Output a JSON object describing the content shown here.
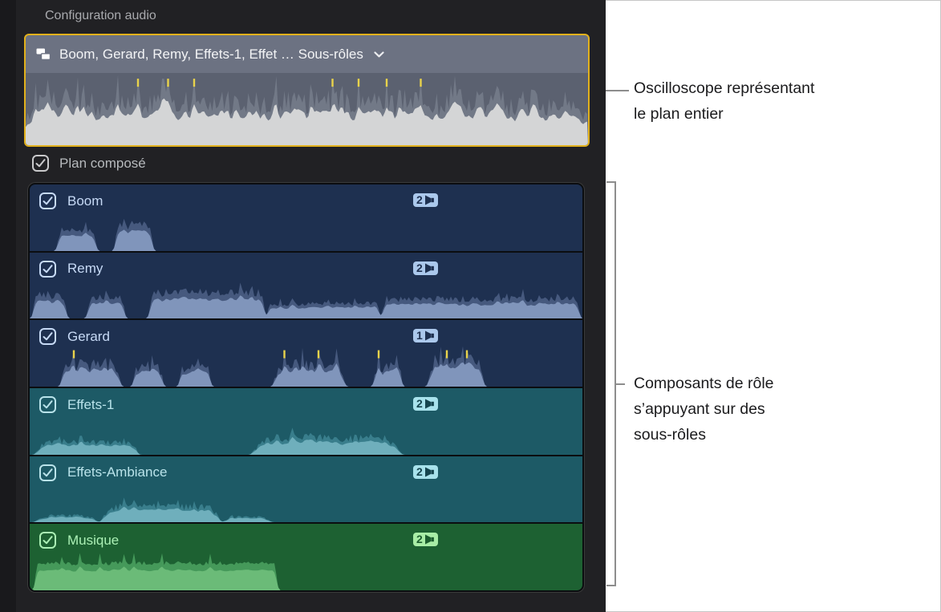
{
  "panel": {
    "header": "Configuration audio",
    "clip": {
      "title": "Boom, Gerard, Remy, Effets-1, Effet … Sous-rôles",
      "border_color": "#e2b11c",
      "bg": "#6c7282",
      "wave_bg": "#5b6170",
      "colors": {
        "fill": "#d4d5d6",
        "peak": "#727987",
        "spike": "#e9d34b"
      },
      "wave": {
        "seed": 7,
        "jitter": 0.5,
        "base": 0.4,
        "spikiness": 0.18,
        "spikeAmp": 0.95,
        "segments": [
          {
            "from": 0,
            "to": 1,
            "amp": 0.8,
            "edge": 0.02
          }
        ],
        "spikes": [
          0.2,
          0.253,
          0.3,
          0.545,
          0.59,
          0.64,
          0.7
        ]
      }
    },
    "compound": {
      "label": "Plan composé",
      "checked": true,
      "color": "#c9c9cb"
    },
    "rows": [
      {
        "label": "Boom",
        "channels": "2",
        "checked": true,
        "colors": {
          "bg": "#1e3050",
          "text": "#c7daf6",
          "fill": "#8095bb",
          "peak": "#46597e",
          "spike": "#e9d34b",
          "badgeBg": "#abc8ec",
          "badgeFg": "#1e3050"
        },
        "wave": {
          "seed": 11,
          "jitter": 0.3,
          "spikiness": 0.06,
          "segments": [
            {
              "from": 0.05,
              "to": 0.125,
              "amp": 0.6
            },
            {
              "from": 0.155,
              "to": 0.225,
              "amp": 0.76
            }
          ]
        }
      },
      {
        "label": "Remy",
        "channels": "2",
        "checked": true,
        "colors": {
          "bg": "#1e3050",
          "text": "#c7daf6",
          "fill": "#8095bb",
          "peak": "#46597e",
          "spike": "#e9d34b",
          "badgeBg": "#abc8ec",
          "badgeFg": "#1e3050"
        },
        "wave": {
          "seed": 23,
          "jitter": 0.28,
          "spikiness": 0.08,
          "segments": [
            {
              "from": 0.004,
              "to": 0.07,
              "amp": 0.66
            },
            {
              "from": 0.105,
              "to": 0.175,
              "amp": 0.58
            },
            {
              "from": 0.215,
              "to": 0.43,
              "amp": 0.74,
              "edge": 0.06
            },
            {
              "from": 0.43,
              "to": 0.635,
              "amp": 0.42,
              "edge": 0.04
            },
            {
              "from": 0.635,
              "to": 1,
              "amp": 0.56,
              "edge": 0.04
            }
          ]
        }
      },
      {
        "label": "Gerard",
        "channels": "1",
        "checked": true,
        "colors": {
          "bg": "#1e3050",
          "text": "#c7daf6",
          "fill": "#8095bb",
          "peak": "#46597e",
          "spike": "#e9d34b",
          "badgeBg": "#abc8ec",
          "badgeFg": "#1e3050"
        },
        "wave": {
          "seed": 37,
          "jitter": 0.5,
          "spikiness": 0.22,
          "spikeAmp": 0.9,
          "segments": [
            {
              "from": 0.055,
              "to": 0.17,
              "amp": 0.72
            },
            {
              "from": 0.185,
              "to": 0.245,
              "amp": 0.6
            },
            {
              "from": 0.27,
              "to": 0.33,
              "amp": 0.56
            },
            {
              "from": 0.44,
              "to": 0.575,
              "amp": 0.74
            },
            {
              "from": 0.62,
              "to": 0.675,
              "amp": 0.62
            },
            {
              "from": 0.72,
              "to": 0.825,
              "amp": 0.8
            }
          ],
          "spikes": [
            0.08,
            0.46,
            0.52,
            0.63,
            0.755,
            0.79
          ]
        }
      },
      {
        "label": "Effets-1",
        "channels": "2",
        "checked": true,
        "colors": {
          "bg": "#1d5a66",
          "text": "#b9e3ea",
          "fill": "#6fafbc",
          "peak": "#397e8c",
          "spike": "#e9d34b",
          "badgeBg": "#a8e2ec",
          "badgeFg": "#15454f"
        },
        "wave": {
          "seed": 41,
          "jitter": 0.4,
          "spikiness": 0.1,
          "segments": [
            {
              "from": 0.01,
              "to": 0.2,
              "amp": 0.4
            },
            {
              "from": 0.4,
              "to": 0.675,
              "amp": 0.52
            }
          ]
        }
      },
      {
        "label": "Effets-Ambiance",
        "channels": "2",
        "checked": true,
        "colors": {
          "bg": "#1d5a66",
          "text": "#b9e3ea",
          "fill": "#6fafbc",
          "peak": "#397e8c",
          "spike": "#e9d34b",
          "badgeBg": "#a8e2ec",
          "badgeFg": "#15454f"
        },
        "wave": {
          "seed": 53,
          "jitter": 0.38,
          "spikiness": 0.1,
          "segments": [
            {
              "from": 0.01,
              "to": 0.13,
              "amp": 0.2,
              "edge": 0.3
            },
            {
              "from": 0.13,
              "to": 0.35,
              "amp": 0.48
            },
            {
              "from": 0.35,
              "to": 0.44,
              "amp": 0.16,
              "edge": 0.3
            }
          ]
        }
      },
      {
        "label": "Musique",
        "channels": "2",
        "checked": true,
        "colors": {
          "bg": "#1d6132",
          "text": "#abf0b5",
          "fill": "#6bbb78",
          "peak": "#45995a",
          "spike": "#e9d34b",
          "badgeBg": "#a8eda6",
          "badgeFg": "#1b5e2e"
        },
        "wave": {
          "seed": 67,
          "jitter": 0.14,
          "spikiness": 0.05,
          "segments": [
            {
              "from": 0.008,
              "to": 0.45,
              "amp": 0.72,
              "edge": 0.02
            }
          ]
        }
      }
    ]
  },
  "annotations": {
    "oscilloscope": {
      "lines": [
        "Oscilloscope représentant",
        "le plan entier"
      ]
    },
    "components": {
      "lines": [
        "Composants de rôle",
        "s’appuyant sur des",
        "sous-rôles"
      ]
    },
    "line_color": "#8d8d8d",
    "text_color": "#1b1b1d"
  },
  "icons": {
    "clip_badge": "compound-clip-icon",
    "dropdown": "chevron-down-icon",
    "channel": "speaker-left-icon",
    "checked": "checkmark-icon"
  }
}
